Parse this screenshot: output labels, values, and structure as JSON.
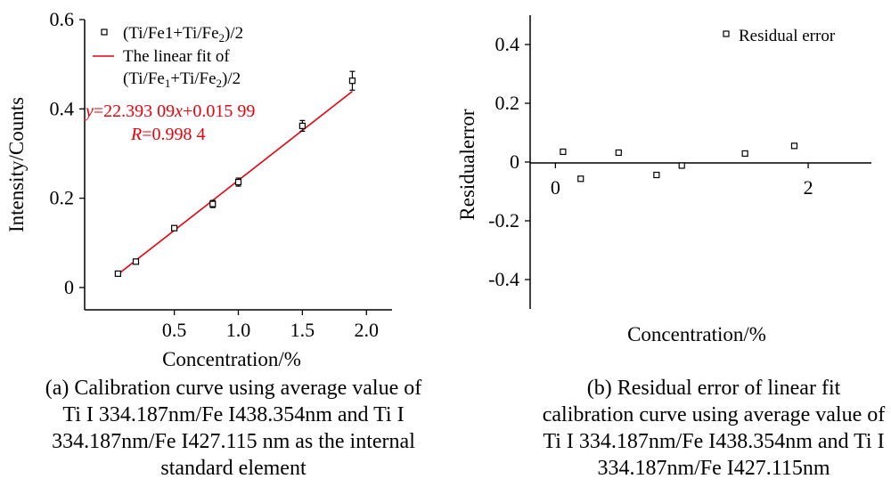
{
  "chart_data": [
    {
      "type": "scatter",
      "xlabel": "Concentration/%",
      "ylabel": "Intensity/Counts",
      "xlim": [
        -0.2,
        2.2
      ],
      "ylim": [
        -0.05,
        0.6
      ],
      "xticks": [
        "0.5",
        "1.0",
        "1.5",
        "2.0"
      ],
      "xtick_values": [
        0.5,
        1.0,
        1.5,
        2.0
      ],
      "yticks": [
        "0",
        "0.2",
        "0.4",
        "0.6"
      ],
      "ytick_values": [
        0,
        0.2,
        0.4,
        0.6
      ],
      "series": [
        {
          "name_parts": {
            "base": "(Ti/Fe1+Ti/Fe",
            "sub": "2",
            "tail": ")/2"
          },
          "marker": "open-square",
          "x": [
            0.06,
            0.2,
            0.5,
            0.8,
            1.0,
            1.5,
            1.89
          ],
          "y": [
            0.031,
            0.058,
            0.133,
            0.187,
            0.236,
            0.362,
            0.463
          ],
          "error": [
            0.004,
            0.004,
            0.004,
            0.008,
            0.009,
            0.012,
            0.021
          ]
        }
      ],
      "fit": {
        "name_line1": "The linear fit of",
        "name_line2_parts": {
          "a": "(Ti/Fe",
          "sub1": "1",
          "b": "+Ti/Fe",
          "sub2": "2",
          "c": ")/2"
        },
        "slope": 0.22393,
        "intercept": 0.01599,
        "x_range": [
          0.05,
          1.89
        ],
        "color": "#e8000b",
        "equation_parts": {
          "y": "y",
          "mid": "=22.393 09",
          "x": "x",
          "tail": "+0.015 99"
        },
        "r_parts": {
          "r": "R",
          "tail": "=0.998 4"
        }
      },
      "caption": [
        "(a) Calibration curve using average value of",
        "Ti I 334.187nm/Fe I438.354nm and Ti I",
        "334.187nm/Fe I427.115 nm as the internal",
        "standard element"
      ]
    },
    {
      "type": "scatter",
      "xlabel": "Concentration/%",
      "ylabel": "Residualerror",
      "xlim": [
        -0.2,
        2.5
      ],
      "ylim": [
        -0.5,
        0.5
      ],
      "xticks": [
        "0",
        "2"
      ],
      "xtick_values": [
        0,
        2
      ],
      "yticks": [
        "0.4",
        "0.2",
        "0",
        "-0.2",
        "-0.4"
      ],
      "ytick_values": [
        0.4,
        0.2,
        0,
        -0.2,
        -0.4
      ],
      "series": [
        {
          "name": "Residual error",
          "marker": "open-square",
          "x": [
            0.06,
            0.2,
            0.5,
            0.8,
            1.0,
            1.5,
            1.89
          ],
          "y": [
            0.035,
            -0.057,
            0.032,
            -0.044,
            -0.012,
            0.029,
            0.055
          ]
        }
      ],
      "caption": [
        "(b)   Residual error of linear fit",
        "calibration curve using average value of",
        "Ti I 334.187nm/Fe I438.354nm and Ti I",
        "334.187nm/Fe I427.115nm"
      ]
    }
  ]
}
